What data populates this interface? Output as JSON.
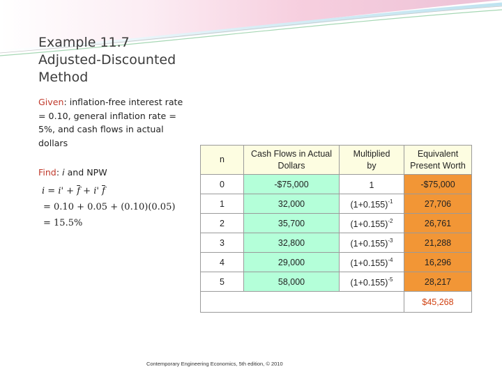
{
  "title_lines": [
    "Example 11.7",
    "Adjusted-Discounted",
    "Method"
  ],
  "given": {
    "label": "Given",
    "text": ": inflation-free interest rate = 0.10, general inflation rate = 5%, and cash flows in actual dollars"
  },
  "find": {
    "label": "Find",
    "text_a": ": ",
    "var": "i",
    "text_b": " and NPW"
  },
  "equations": {
    "line1_lhs": "i = i' + ",
    "line1_f": "f",
    "line1_mid": " + i' ",
    "line1_f2": "f",
    "line2": "= 0.10 + 0.05 + (0.10)(0.05)",
    "line3": "= 15.5%"
  },
  "table": {
    "headers": [
      {
        "line1": "n",
        "line2": ""
      },
      {
        "line1": "Cash Flows in Actual",
        "line2": "Dollars"
      },
      {
        "line1": "Multiplied",
        "line2": "by"
      },
      {
        "line1": "Equivalent",
        "line2": "Present Worth"
      }
    ],
    "rows": [
      {
        "n": "0",
        "cf": "-$75,000",
        "mult_base": "1",
        "mult_exp": "",
        "pw": "-$75,000"
      },
      {
        "n": "1",
        "cf": "32,000",
        "mult_base": "(1+0.155)",
        "mult_exp": "-1",
        "pw": "27,706"
      },
      {
        "n": "2",
        "cf": "35,700",
        "mult_base": "(1+0.155)",
        "mult_exp": "-2",
        "pw": "26,761"
      },
      {
        "n": "3",
        "cf": "32,800",
        "mult_base": "(1+0.155)",
        "mult_exp": "-3",
        "pw": "21,288"
      },
      {
        "n": "4",
        "cf": "29,000",
        "mult_base": "(1+0.155)",
        "mult_exp": "-4",
        "pw": "16,296"
      },
      {
        "n": "5",
        "cf": "58,000",
        "mult_base": "(1+0.155)",
        "mult_exp": "-5",
        "pw": "28,217"
      }
    ],
    "total": "$45,268"
  },
  "footer": "Contemporary Engineering Economics, 5th edition, © 2010",
  "colors": {
    "cash_flow_fill": "#b4ffd9",
    "present_worth_fill": "#f29636",
    "header_fill": "#fdfde1",
    "keyword": "#c0392b",
    "total_text": "#d04010"
  }
}
